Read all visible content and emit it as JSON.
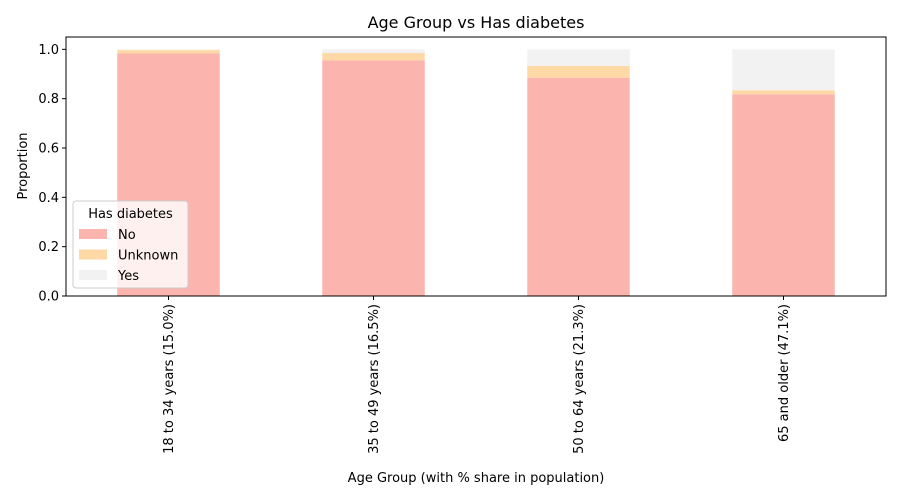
{
  "chart_data": {
    "type": "bar",
    "stacked": true,
    "title": "Age Group vs Has diabetes",
    "xlabel": "Age Group (with % share in population)",
    "ylabel": "Proportion",
    "ylim": [
      0,
      1.05
    ],
    "yticks": [
      "0.0",
      "0.2",
      "0.4",
      "0.6",
      "0.8",
      "1.0"
    ],
    "categories": [
      "18 to 34 years (15.0%)",
      "35 to 49 years (16.5%)",
      "50 to 64 years (21.3%)",
      "65 and older (47.1%)"
    ],
    "legend": {
      "title": "Has diabetes",
      "position": "lower-left"
    },
    "series": [
      {
        "name": "No",
        "color": "#fbb4ae",
        "values": [
          0.983,
          0.955,
          0.885,
          0.818
        ]
      },
      {
        "name": "Unknown",
        "color": "#fed9a6",
        "values": [
          0.014,
          0.03,
          0.048,
          0.016
        ]
      },
      {
        "name": "Yes",
        "color": "#f2f2f2",
        "values": [
          0.003,
          0.015,
          0.067,
          0.166
        ]
      }
    ]
  }
}
